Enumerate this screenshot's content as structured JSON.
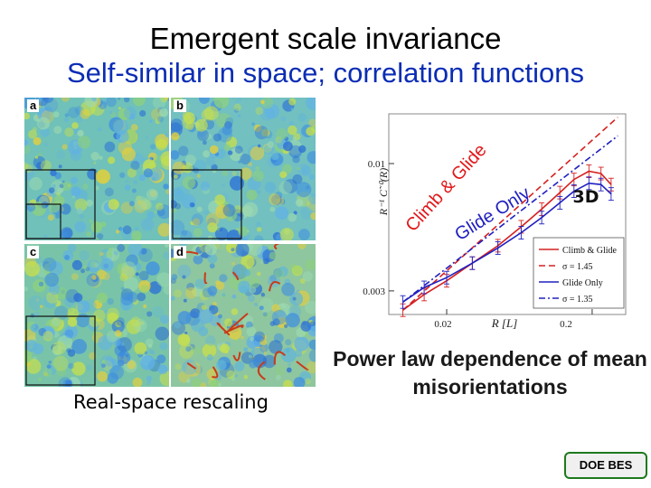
{
  "header": {
    "title": "Emergent scale invariance",
    "subtitle": "Self-similar in space; correlation functions"
  },
  "maps": {
    "panels": [
      {
        "label": "a"
      },
      {
        "label": "b"
      },
      {
        "label": "c"
      },
      {
        "label": "d"
      }
    ],
    "caption": "Real-space rescaling"
  },
  "plot": {
    "ylabel": "R⁻¹ C˜⁰(R)",
    "xlabel": "R  [L]",
    "yticks": [
      "0.01",
      "0.003"
    ],
    "xticks": [
      "0.02",
      "0.2"
    ],
    "overlay_dimension": "3D",
    "overlay_climb": "Climb & Glide",
    "overlay_glide": "Glide Only",
    "legend": [
      {
        "label": "Climb & Glide",
        "color": "#d62020",
        "dash": "solid"
      },
      {
        "label": "σ = 1.45",
        "color": "#d62020",
        "dash": "dashed"
      },
      {
        "label": "Glide Only",
        "color": "#2020c0",
        "dash": "solid"
      },
      {
        "label": "σ = 1.35",
        "color": "#2020c0",
        "dash": "dashdot"
      }
    ]
  },
  "chart_data": {
    "type": "line",
    "xlabel": "R  [L]",
    "ylabel": "R⁻¹ C˜⁰(R)",
    "xscale": "log",
    "yscale": "log",
    "xlim": [
      0.008,
      0.34
    ],
    "ylim": [
      0.0024,
      0.016
    ],
    "series": [
      {
        "name": "Climb & Glide",
        "x": [
          0.01,
          0.014,
          0.02,
          0.03,
          0.045,
          0.065,
          0.09,
          0.12,
          0.15,
          0.19,
          0.23,
          0.27
        ],
        "y": [
          0.0025,
          0.0029,
          0.0033,
          0.0039,
          0.0046,
          0.0055,
          0.0065,
          0.0076,
          0.0086,
          0.0093,
          0.0091,
          0.0082
        ]
      },
      {
        "name": "σ = 1.45",
        "x": [
          0.01,
          0.3
        ],
        "y": [
          0.0025,
          0.0155
        ]
      },
      {
        "name": "Glide Only",
        "x": [
          0.01,
          0.014,
          0.02,
          0.03,
          0.045,
          0.065,
          0.09,
          0.12,
          0.15,
          0.19,
          0.23,
          0.27
        ],
        "y": [
          0.0027,
          0.0031,
          0.0034,
          0.0039,
          0.0045,
          0.0052,
          0.006,
          0.0069,
          0.0077,
          0.0083,
          0.0082,
          0.0075
        ]
      },
      {
        "name": "σ = 1.35",
        "x": [
          0.01,
          0.3
        ],
        "y": [
          0.0027,
          0.013
        ]
      }
    ]
  },
  "results": {
    "caption": "Power law dependence of mean misorientations"
  },
  "footer": {
    "badge": "DOE BES"
  }
}
